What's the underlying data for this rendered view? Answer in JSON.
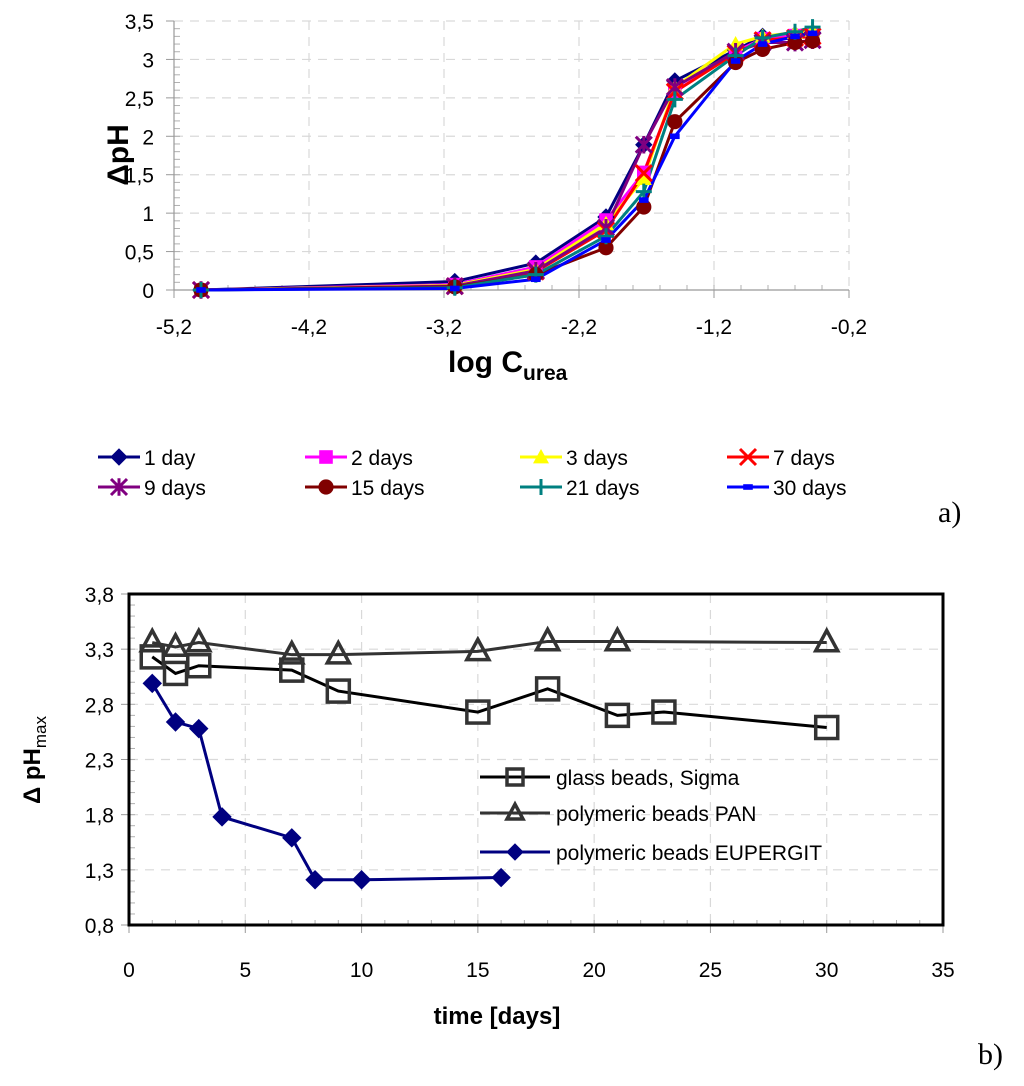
{
  "chart_data": [
    {
      "type": "line",
      "panel_label": "a)",
      "title": "",
      "xlabel_main": "log C",
      "xlabel_sub": "urea",
      "ylabel": "ΔpH",
      "xlim": [
        -5.2,
        -0.2
      ],
      "ylim": [
        0,
        3.5
      ],
      "xticks": [
        -5.2,
        -4.2,
        -3.2,
        -2.2,
        -1.2,
        -0.2
      ],
      "xtick_labels": [
        "-5,2",
        "-4,2",
        "-3,2",
        "-2,2",
        "-1,2",
        "-0,2"
      ],
      "yticks": [
        0,
        0.5,
        1,
        1.5,
        2,
        2.5,
        3,
        3.5
      ],
      "ytick_labels": [
        "0",
        "0,5",
        "1",
        "1,5",
        "2",
        "2,5",
        "3",
        "3,5"
      ],
      "grid": true,
      "legend_position": "bottom",
      "x": [
        -5.0,
        -3.12,
        -2.52,
        -2.0,
        -1.72,
        -1.49,
        -1.04,
        -0.84,
        -0.6,
        -0.47
      ],
      "series": [
        {
          "name": "1 day",
          "color": "#000080",
          "marker": "diamond",
          "values": [
            0,
            0.11,
            0.35,
            0.95,
            1.89,
            2.72,
            3.12,
            3.3,
            3.32,
            3.35
          ]
        },
        {
          "name": "2 days",
          "color": "#ff00ff",
          "marker": "square",
          "values": [
            0,
            0.07,
            0.3,
            0.91,
            1.53,
            2.58,
            3.1,
            3.27,
            3.31,
            3.33
          ]
        },
        {
          "name": "3 days",
          "color": "#ffff00",
          "marker": "triangle",
          "values": [
            0,
            0.06,
            0.27,
            0.86,
            1.45,
            2.64,
            3.2,
            3.3,
            3.35,
            3.38
          ]
        },
        {
          "name": "7 days",
          "color": "#ff0000",
          "marker": "x",
          "values": [
            0,
            0.05,
            0.24,
            0.78,
            1.52,
            2.58,
            3.08,
            3.25,
            3.28,
            3.3
          ]
        },
        {
          "name": "9 days",
          "color": "#800080",
          "marker": "asterisk",
          "values": [
            0,
            0.05,
            0.25,
            0.81,
            1.89,
            2.64,
            3.1,
            3.22,
            3.22,
            3.25
          ]
        },
        {
          "name": "15 days",
          "color": "#800000",
          "marker": "circle",
          "values": [
            0,
            0.04,
            0.2,
            0.55,
            1.08,
            2.19,
            2.96,
            3.13,
            3.22,
            3.24
          ]
        },
        {
          "name": "21 days",
          "color": "#008080",
          "marker": "plus",
          "values": [
            0,
            0.03,
            0.2,
            0.7,
            1.28,
            2.48,
            3.05,
            3.28,
            3.36,
            3.42
          ]
        },
        {
          "name": "30 days",
          "color": "#0000ff",
          "marker": "dash",
          "values": [
            0,
            0.02,
            0.14,
            0.65,
            1.17,
            2.0,
            2.98,
            3.2,
            3.3,
            3.34
          ]
        }
      ]
    },
    {
      "type": "line",
      "panel_label": "b)",
      "title": "",
      "xlabel": "time [days]",
      "ylabel_main": "Δ pH",
      "ylabel_sub": "max",
      "xlim": [
        0,
        35
      ],
      "ylim": [
        0.8,
        3.8
      ],
      "xticks": [
        0,
        5,
        10,
        15,
        20,
        25,
        30,
        35
      ],
      "xtick_labels": [
        "0",
        "5",
        "10",
        "15",
        "20",
        "25",
        "30",
        "35"
      ],
      "yticks": [
        0.8,
        1.3,
        1.8,
        2.3,
        2.8,
        3.3,
        3.8
      ],
      "ytick_labels": [
        "0,8",
        "1,3",
        "1,8",
        "2,3",
        "2,8",
        "3,3",
        "3,8"
      ],
      "grid": true,
      "legend_position": "center-right",
      "series": [
        {
          "name": "glass beads, Sigma",
          "color": "#000000",
          "marker_color": "#333333",
          "marker": "square-open",
          "x": [
            1,
            2,
            3,
            7,
            9,
            15,
            18,
            21,
            23,
            30
          ],
          "values": [
            3.23,
            3.08,
            3.15,
            3.11,
            2.92,
            2.73,
            2.94,
            2.7,
            2.73,
            2.59
          ]
        },
        {
          "name": "polymeric beads PAN",
          "color": "#333333",
          "marker_color": "#333333",
          "marker": "triangle-open",
          "x": [
            1,
            2,
            3,
            7,
            9,
            15,
            18,
            21,
            30
          ],
          "values": [
            3.36,
            3.32,
            3.36,
            3.25,
            3.25,
            3.28,
            3.37,
            3.37,
            3.36
          ]
        },
        {
          "name": "polymeric beads EUPERGIT",
          "color": "#000080",
          "marker_color": "#000080",
          "marker": "diamond",
          "x": [
            1,
            2,
            3,
            4,
            7,
            8,
            10,
            16
          ],
          "values": [
            2.99,
            2.64,
            2.58,
            1.78,
            1.59,
            1.21,
            1.21,
            1.23
          ]
        }
      ]
    }
  ]
}
